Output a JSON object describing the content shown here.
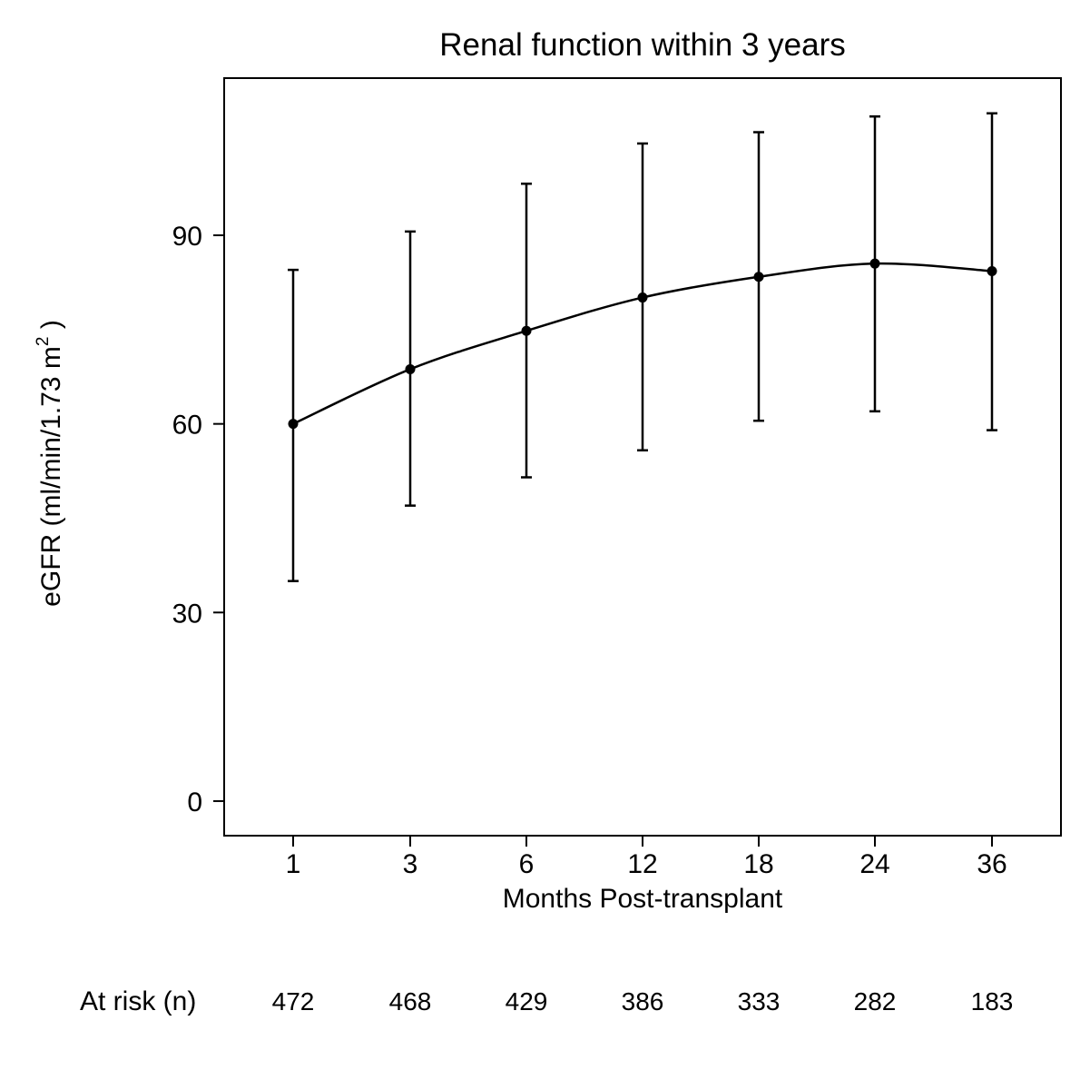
{
  "chart_data": {
    "type": "line",
    "title": "Renal function within 3 years",
    "xlabel": "Months Post-transplant",
    "ylabel_main": "eGFR (ml/min/1.73 m",
    "ylabel_sup": "2",
    "ylabel_close": " )",
    "categories": [
      "1",
      "3",
      "6",
      "12",
      "18",
      "24",
      "36"
    ],
    "values": [
      60,
      68.7,
      74.8,
      80.1,
      83.4,
      85.5,
      84.3
    ],
    "error_low": [
      35,
      47,
      51.5,
      55.8,
      60.5,
      62,
      59
    ],
    "error_high": [
      84.5,
      90.6,
      98.2,
      104.6,
      106.4,
      108.9,
      109.4
    ],
    "yticks": [
      0,
      30,
      60,
      90
    ],
    "ylim": [
      -5.5,
      115
    ],
    "grid": false,
    "at_risk": {
      "label": "At risk (n)",
      "values": [
        "472",
        "468",
        "429",
        "386",
        "333",
        "282",
        "183"
      ]
    }
  }
}
